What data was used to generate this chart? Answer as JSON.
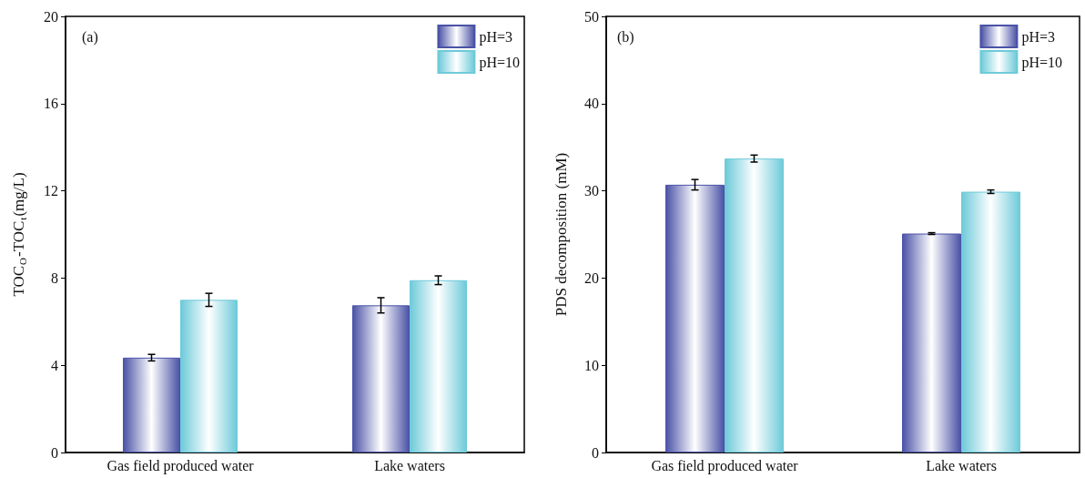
{
  "chart_data": [
    {
      "type": "bar",
      "categories": [
        "Gas field produced water",
        "Lake waters"
      ],
      "ylabel": "TOC$_{O}$-TOC$_{t}$(mg/L)",
      "ylim": [
        0,
        20
      ],
      "yticks": [
        0,
        4,
        8,
        12,
        16,
        20
      ],
      "legend": "top right",
      "annotations": [
        "(a)"
      ],
      "series": [
        {
          "name": "pH=3",
          "color": "#4a52a6",
          "values": [
            4.35,
            6.75
          ],
          "errors": [
            0.15,
            0.35
          ]
        },
        {
          "name": "pH=10",
          "color": "#6dcad9",
          "values": [
            7.0,
            7.9
          ],
          "errors": [
            0.3,
            0.2
          ]
        }
      ]
    },
    {
      "type": "bar",
      "categories": [
        "Gas field produced water",
        "Lake waters"
      ],
      "ylabel": "PDS decomposition (mM)",
      "ylim": [
        0,
        50
      ],
      "yticks": [
        0,
        10,
        20,
        30,
        40,
        50
      ],
      "legend": "top right",
      "annotations": [
        "(b)"
      ],
      "series": [
        {
          "name": "pH=3",
          "color": "#4a52a6",
          "values": [
            30.7,
            25.1
          ],
          "errors": [
            0.6,
            0.1
          ]
        },
        {
          "name": "pH=10",
          "color": "#6dcad9",
          "values": [
            33.7,
            29.9
          ],
          "errors": [
            0.4,
            0.2
          ]
        }
      ]
    }
  ]
}
